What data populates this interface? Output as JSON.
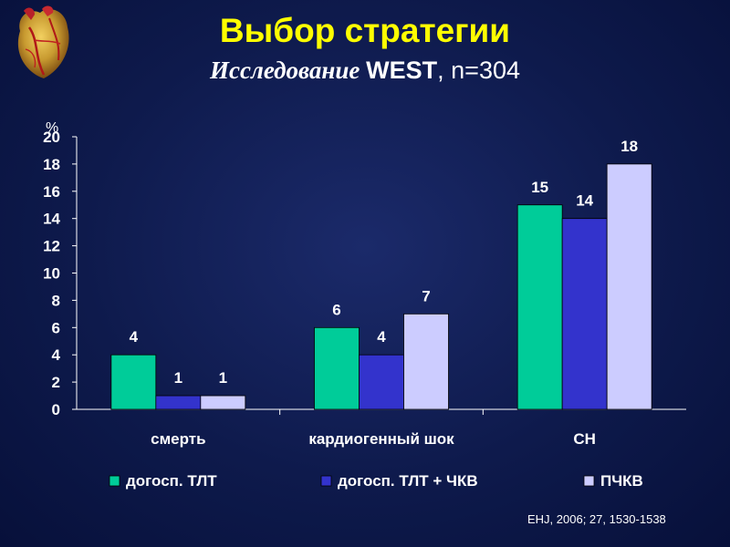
{
  "header": {
    "title": "Выбор стратегии",
    "subtitle_study": "Исследование",
    "subtitle_name": "WEST",
    "subtitle_rest": ", n=304"
  },
  "citation": "EHJ, 2006; 27, 1530-1538",
  "colors": {
    "background": "#0e1a4c",
    "title": "#ffff00",
    "series1": "#00cc99",
    "series2": "#3333cc",
    "series3": "#ccccff"
  },
  "chart_data": {
    "type": "bar",
    "ylabel": "%",
    "ylim": [
      0,
      20
    ],
    "yticks": [
      0,
      2,
      4,
      6,
      8,
      10,
      12,
      14,
      16,
      18,
      20
    ],
    "categories": [
      "смерть",
      "кардиогенный шок",
      "СН"
    ],
    "series": [
      {
        "name": "догосп. ТЛТ",
        "values": [
          4,
          6,
          15
        ],
        "color": "#00cc99"
      },
      {
        "name": "догосп. ТЛТ + ЧКВ",
        "values": [
          1,
          4,
          14
        ],
        "color": "#3333cc"
      },
      {
        "name": "ПЧКВ",
        "values": [
          1,
          7,
          18
        ],
        "color": "#ccccff"
      }
    ],
    "legend": "bottom",
    "grid": false
  }
}
